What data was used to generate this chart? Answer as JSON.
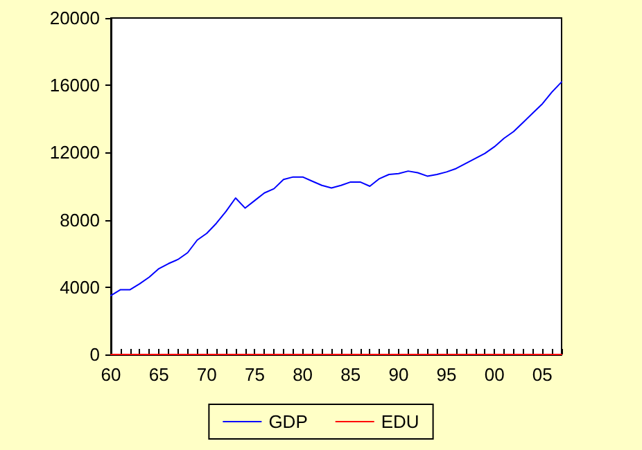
{
  "chart_data": {
    "type": "line",
    "x": [
      1960,
      1961,
      1962,
      1963,
      1964,
      1965,
      1966,
      1967,
      1968,
      1969,
      1970,
      1971,
      1972,
      1973,
      1974,
      1975,
      1976,
      1977,
      1978,
      1979,
      1980,
      1981,
      1982,
      1983,
      1984,
      1985,
      1986,
      1987,
      1988,
      1989,
      1990,
      1991,
      1992,
      1993,
      1994,
      1995,
      1996,
      1997,
      1998,
      1999,
      2000,
      2001,
      2002,
      2003,
      2004,
      2005,
      2006,
      2007
    ],
    "series": [
      {
        "name": "GDP",
        "color": "#0000ff",
        "values": [
          3500,
          3850,
          3850,
          4200,
          4600,
          5100,
          5400,
          5650,
          6050,
          6800,
          7200,
          7800,
          8500,
          9300,
          8700,
          9150,
          9600,
          9850,
          10400,
          10550,
          10550,
          10300,
          10050,
          9900,
          10050,
          10250,
          10250,
          10000,
          10450,
          10700,
          10750,
          10900,
          10800,
          10600,
          10700,
          10850,
          11050,
          11350,
          11650,
          11950,
          12350,
          12850,
          13250,
          13800,
          14350,
          14900,
          15600,
          16200
        ]
      },
      {
        "name": "EDU",
        "color": "#ff0000",
        "values": [
          0,
          0,
          0,
          0,
          0,
          0,
          0,
          0,
          0,
          0,
          0,
          0,
          0,
          0,
          0,
          0,
          0,
          0,
          0,
          0,
          0,
          0,
          0,
          0,
          0,
          0,
          0,
          0,
          0,
          0,
          0,
          0,
          0,
          0,
          0,
          0,
          0,
          0,
          0,
          0,
          0,
          0,
          0,
          0,
          0,
          0,
          0,
          0
        ]
      }
    ],
    "xlim": [
      1960,
      2007
    ],
    "xticks": [
      {
        "value": 1960,
        "label": "60"
      },
      {
        "value": 1961,
        "label": null
      },
      {
        "value": 1962,
        "label": null
      },
      {
        "value": 1963,
        "label": null
      },
      {
        "value": 1964,
        "label": null
      },
      {
        "value": 1965,
        "label": "65"
      },
      {
        "value": 1966,
        "label": null
      },
      {
        "value": 1967,
        "label": null
      },
      {
        "value": 1968,
        "label": null
      },
      {
        "value": 1969,
        "label": null
      },
      {
        "value": 1970,
        "label": "70"
      },
      {
        "value": 1971,
        "label": null
      },
      {
        "value": 1972,
        "label": null
      },
      {
        "value": 1973,
        "label": null
      },
      {
        "value": 1974,
        "label": null
      },
      {
        "value": 1975,
        "label": "75"
      },
      {
        "value": 1976,
        "label": null
      },
      {
        "value": 1977,
        "label": null
      },
      {
        "value": 1978,
        "label": null
      },
      {
        "value": 1979,
        "label": null
      },
      {
        "value": 1980,
        "label": "80"
      },
      {
        "value": 1981,
        "label": null
      },
      {
        "value": 1982,
        "label": null
      },
      {
        "value": 1983,
        "label": null
      },
      {
        "value": 1984,
        "label": null
      },
      {
        "value": 1985,
        "label": "85"
      },
      {
        "value": 1986,
        "label": null
      },
      {
        "value": 1987,
        "label": null
      },
      {
        "value": 1988,
        "label": null
      },
      {
        "value": 1989,
        "label": null
      },
      {
        "value": 1990,
        "label": "90"
      },
      {
        "value": 1991,
        "label": null
      },
      {
        "value": 1992,
        "label": null
      },
      {
        "value": 1993,
        "label": null
      },
      {
        "value": 1994,
        "label": null
      },
      {
        "value": 1995,
        "label": "95"
      },
      {
        "value": 1996,
        "label": null
      },
      {
        "value": 1997,
        "label": null
      },
      {
        "value": 1998,
        "label": null
      },
      {
        "value": 1999,
        "label": null
      },
      {
        "value": 2000,
        "label": "00"
      },
      {
        "value": 2001,
        "label": null
      },
      {
        "value": 2002,
        "label": null
      },
      {
        "value": 2003,
        "label": null
      },
      {
        "value": 2004,
        "label": null
      },
      {
        "value": 2005,
        "label": "05"
      },
      {
        "value": 2006,
        "label": null
      },
      {
        "value": 2007,
        "label": null
      }
    ],
    "ylim": [
      0,
      20000
    ],
    "yticks": [
      0,
      4000,
      8000,
      12000,
      16000,
      20000
    ],
    "grid": false,
    "legend": "bottom",
    "marker": "none",
    "line_style": "solid"
  }
}
